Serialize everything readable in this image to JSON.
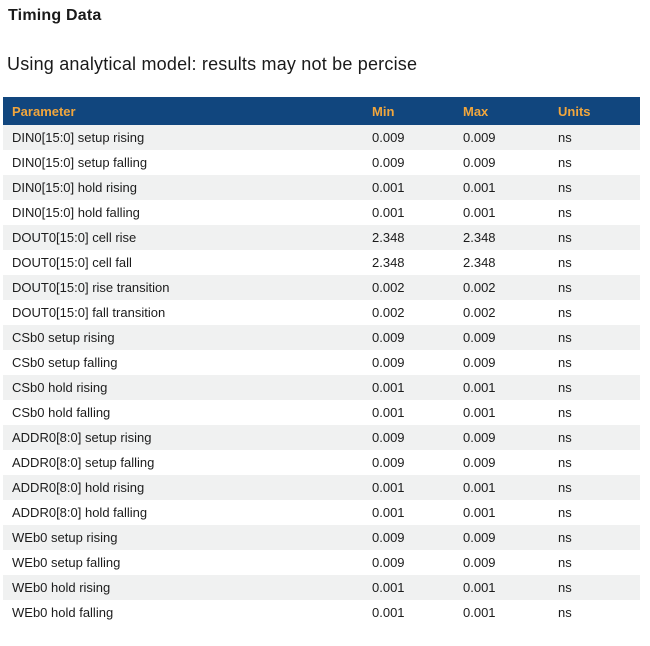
{
  "page": {
    "title": "Timing Data",
    "subtitle": "Using analytical model: results may not be percise"
  },
  "colors": {
    "header_bg": "#11467e",
    "header_text": "#f1a63d",
    "row_stripe_bg": "#f0f1f1",
    "row_text": "#1c1c1c"
  },
  "table": {
    "columns": [
      "Parameter",
      "Min",
      "Max",
      "Units"
    ],
    "rows": [
      [
        "DIN0[15:0] setup rising",
        "0.009",
        "0.009",
        "ns"
      ],
      [
        "DIN0[15:0] setup falling",
        "0.009",
        "0.009",
        "ns"
      ],
      [
        "DIN0[15:0] hold rising",
        "0.001",
        "0.001",
        "ns"
      ],
      [
        "DIN0[15:0] hold falling",
        "0.001",
        "0.001",
        "ns"
      ],
      [
        "DOUT0[15:0] cell rise",
        "2.348",
        "2.348",
        "ns"
      ],
      [
        "DOUT0[15:0] cell fall",
        "2.348",
        "2.348",
        "ns"
      ],
      [
        "DOUT0[15:0] rise transition",
        "0.002",
        "0.002",
        "ns"
      ],
      [
        "DOUT0[15:0] fall transition",
        "0.002",
        "0.002",
        "ns"
      ],
      [
        "CSb0 setup rising",
        "0.009",
        "0.009",
        "ns"
      ],
      [
        "CSb0 setup falling",
        "0.009",
        "0.009",
        "ns"
      ],
      [
        "CSb0 hold rising",
        "0.001",
        "0.001",
        "ns"
      ],
      [
        "CSb0 hold falling",
        "0.001",
        "0.001",
        "ns"
      ],
      [
        "ADDR0[8:0] setup rising",
        "0.009",
        "0.009",
        "ns"
      ],
      [
        "ADDR0[8:0] setup falling",
        "0.009",
        "0.009",
        "ns"
      ],
      [
        "ADDR0[8:0] hold rising",
        "0.001",
        "0.001",
        "ns"
      ],
      [
        "ADDR0[8:0] hold falling",
        "0.001",
        "0.001",
        "ns"
      ],
      [
        "WEb0 setup rising",
        "0.009",
        "0.009",
        "ns"
      ],
      [
        "WEb0 setup falling",
        "0.009",
        "0.009",
        "ns"
      ],
      [
        "WEb0 hold rising",
        "0.001",
        "0.001",
        "ns"
      ],
      [
        "WEb0 hold falling",
        "0.001",
        "0.001",
        "ns"
      ]
    ]
  }
}
